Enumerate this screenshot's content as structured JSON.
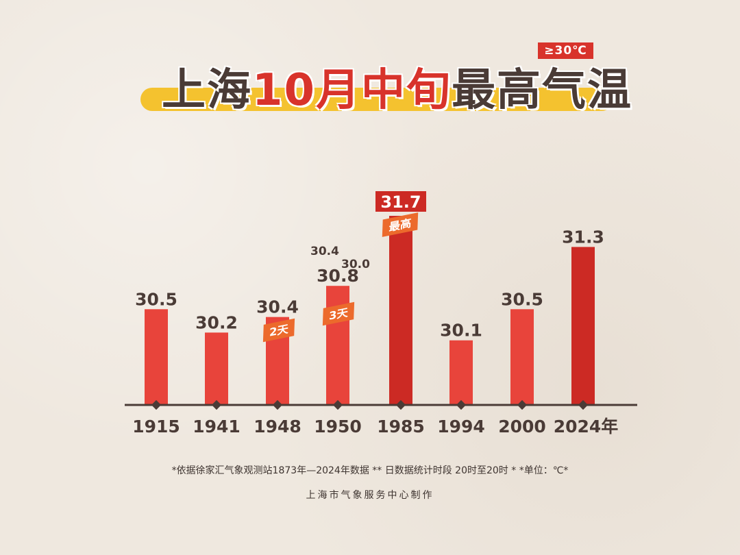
{
  "badge": "≥30℃",
  "title": {
    "part1": "上海",
    "part2": "10月中旬",
    "part3": "最高气温"
  },
  "chart_data": {
    "type": "bar",
    "categories": [
      "1915",
      "1941",
      "1948",
      "1950",
      "1985",
      "1994",
      "2000",
      "2024年"
    ],
    "values": [
      30.5,
      30.2,
      30.4,
      30.8,
      31.7,
      30.1,
      30.5,
      31.3
    ],
    "value_labels": [
      "30.5",
      "30.2",
      "30.4",
      "30.8",
      "31.7",
      "30.1",
      "30.5",
      "31.3"
    ],
    "extra_values_1950": [
      "30.4",
      "30.0"
    ],
    "tags": [
      {
        "category": "1948",
        "text": "2天"
      },
      {
        "category": "1950",
        "text": "3天"
      },
      {
        "category": "1985",
        "text": "最高"
      }
    ],
    "highlight_color": "#cc2a24",
    "bar_color": "#e8443b"
  },
  "footnote": "*依据徐家汇气象观测站1873年—2024年数据 ** 日数据统计时段 20时至20时 * *单位：℃*",
  "credit": "上海市气象服务中心制作"
}
